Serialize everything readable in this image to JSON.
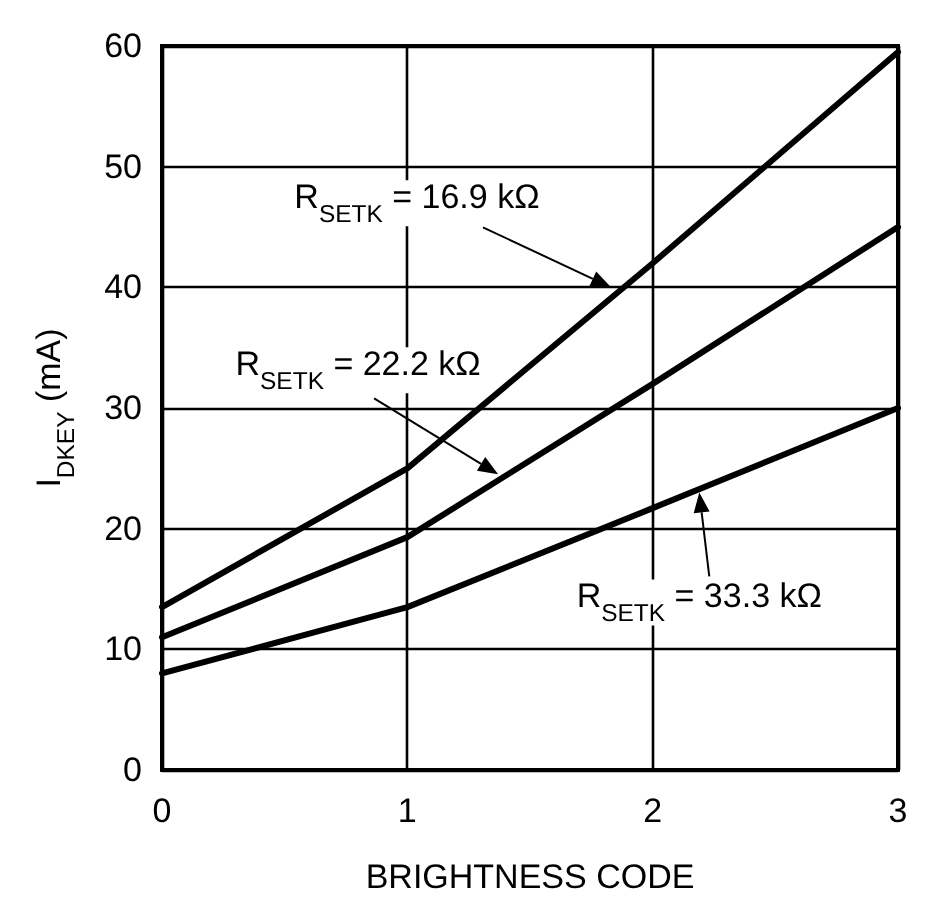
{
  "chart_data": {
    "type": "line",
    "xlabel": "BRIGHTNESS CODE",
    "ylabel": "I$_{DKEY}$ (mA)",
    "x": [
      0,
      1,
      2,
      3
    ],
    "series": [
      {
        "color": "#000000",
        "values": [
          13.5,
          25,
          42,
          59.5
        ]
      },
      {
        "color": "#000000",
        "values": [
          11,
          19.3,
          32,
          45
        ]
      },
      {
        "color": "#000000",
        "values": [
          8,
          13.5,
          21.7,
          30
        ]
      }
    ],
    "xlim": [
      0,
      3
    ],
    "xticks": [
      0,
      1,
      2,
      3
    ],
    "ylim": [
      0,
      60
    ],
    "yticks": [
      0,
      10,
      20,
      30,
      40,
      50,
      60
    ],
    "grid": true,
    "marker": "none",
    "line_style": "solid",
    "annotations": [
      {
        "text": "R$_{SETK}$ = 16.9 kΩ",
        "x": 1.83,
        "y": 40
      },
      {
        "text": "R$_{SETK}$ = 22.2 kΩ",
        "x": 1.37,
        "y": 24.5
      },
      {
        "text": "R$_{SETK}$ = 33.3 kΩ",
        "x": 2.19,
        "y": 23
      }
    ]
  }
}
